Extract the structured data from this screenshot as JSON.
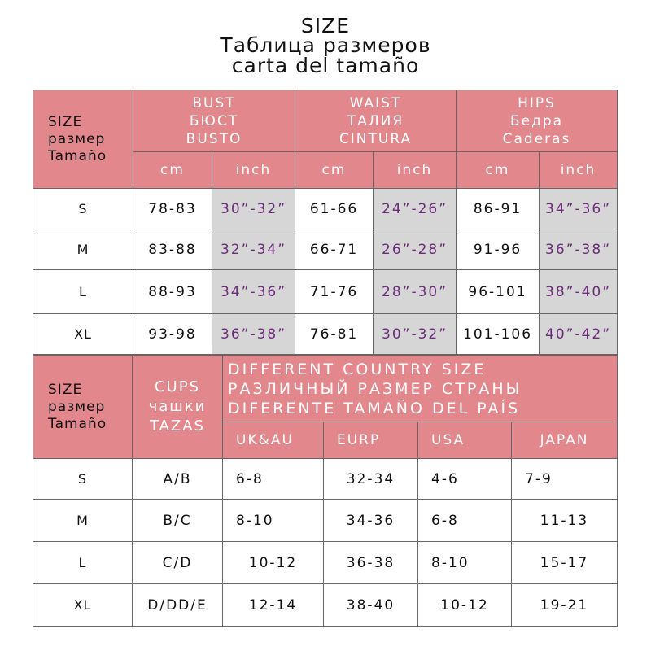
{
  "title": {
    "line1": "SIZE",
    "line2": "Таблица размеров",
    "line3": "carta del tamaño"
  },
  "top_table": {
    "size_header": [
      "SIZE",
      "размер",
      "Tamaño"
    ],
    "groups": [
      {
        "lines": [
          "BUST",
          "БЮСТ",
          "BUSTO"
        ]
      },
      {
        "lines": [
          "WAIST",
          "ТАЛИЯ",
          "CINTURA"
        ]
      },
      {
        "lines": [
          "HIPS",
          "Бедра",
          "Caderas"
        ]
      }
    ],
    "units": [
      "cm",
      "inch",
      "cm",
      "inch",
      "cm",
      "inch"
    ],
    "rows": [
      {
        "size": "S",
        "cells": [
          "78-83",
          "30”-32”",
          "61-66",
          "24”-26”",
          "86-91",
          "34”-36”"
        ]
      },
      {
        "size": "M",
        "cells": [
          "83-88",
          "32”-34”",
          "66-71",
          "26”-28”",
          "91-96",
          "36”-38”"
        ]
      },
      {
        "size": "L",
        "cells": [
          "88-93",
          "34”-36”",
          "71-76",
          "28”-30”",
          "96-101",
          "38”-40”"
        ]
      },
      {
        "size": "XL",
        "cells": [
          "93-98",
          "36”-38”",
          "76-81",
          "30”-32”",
          "101-106",
          "40”-42”"
        ]
      }
    ],
    "colors": {
      "header_bg": "#e2888d",
      "inch_bg": "#d6d6d6",
      "inch_text": "#6b2d7a"
    }
  },
  "bottom_table": {
    "size_header": [
      "SIZE",
      "размер",
      "Tamaño"
    ],
    "cups_header": [
      "CUPS",
      "чашки",
      "TAZAS"
    ],
    "country_header": [
      "DIFFERENT COUNTRY SIZE",
      "РАЗЛИЧНЫЙ РАЗМЕР СТРАНЫ",
      "DIFERENTE TAMAÑO DEL PAÍS"
    ],
    "countries": [
      "UK&AU",
      "EURP",
      "USA",
      "JAPAN"
    ],
    "rows": [
      {
        "size": "S",
        "cups": "A/B",
        "cells": [
          "6-8",
          "32-34",
          "4-6",
          "7-9"
        ]
      },
      {
        "size": "M",
        "cups": "B/C",
        "cells": [
          "8-10",
          "34-36",
          "6-8",
          "11-13"
        ]
      },
      {
        "size": "L",
        "cups": "C/D",
        "cells": [
          "10-12",
          "36-38",
          "8-10",
          "15-17"
        ]
      },
      {
        "size": "XL",
        "cups": "D/DD/E",
        "cells": [
          "12-14",
          "38-40",
          "10-12",
          "19-21"
        ]
      }
    ]
  }
}
